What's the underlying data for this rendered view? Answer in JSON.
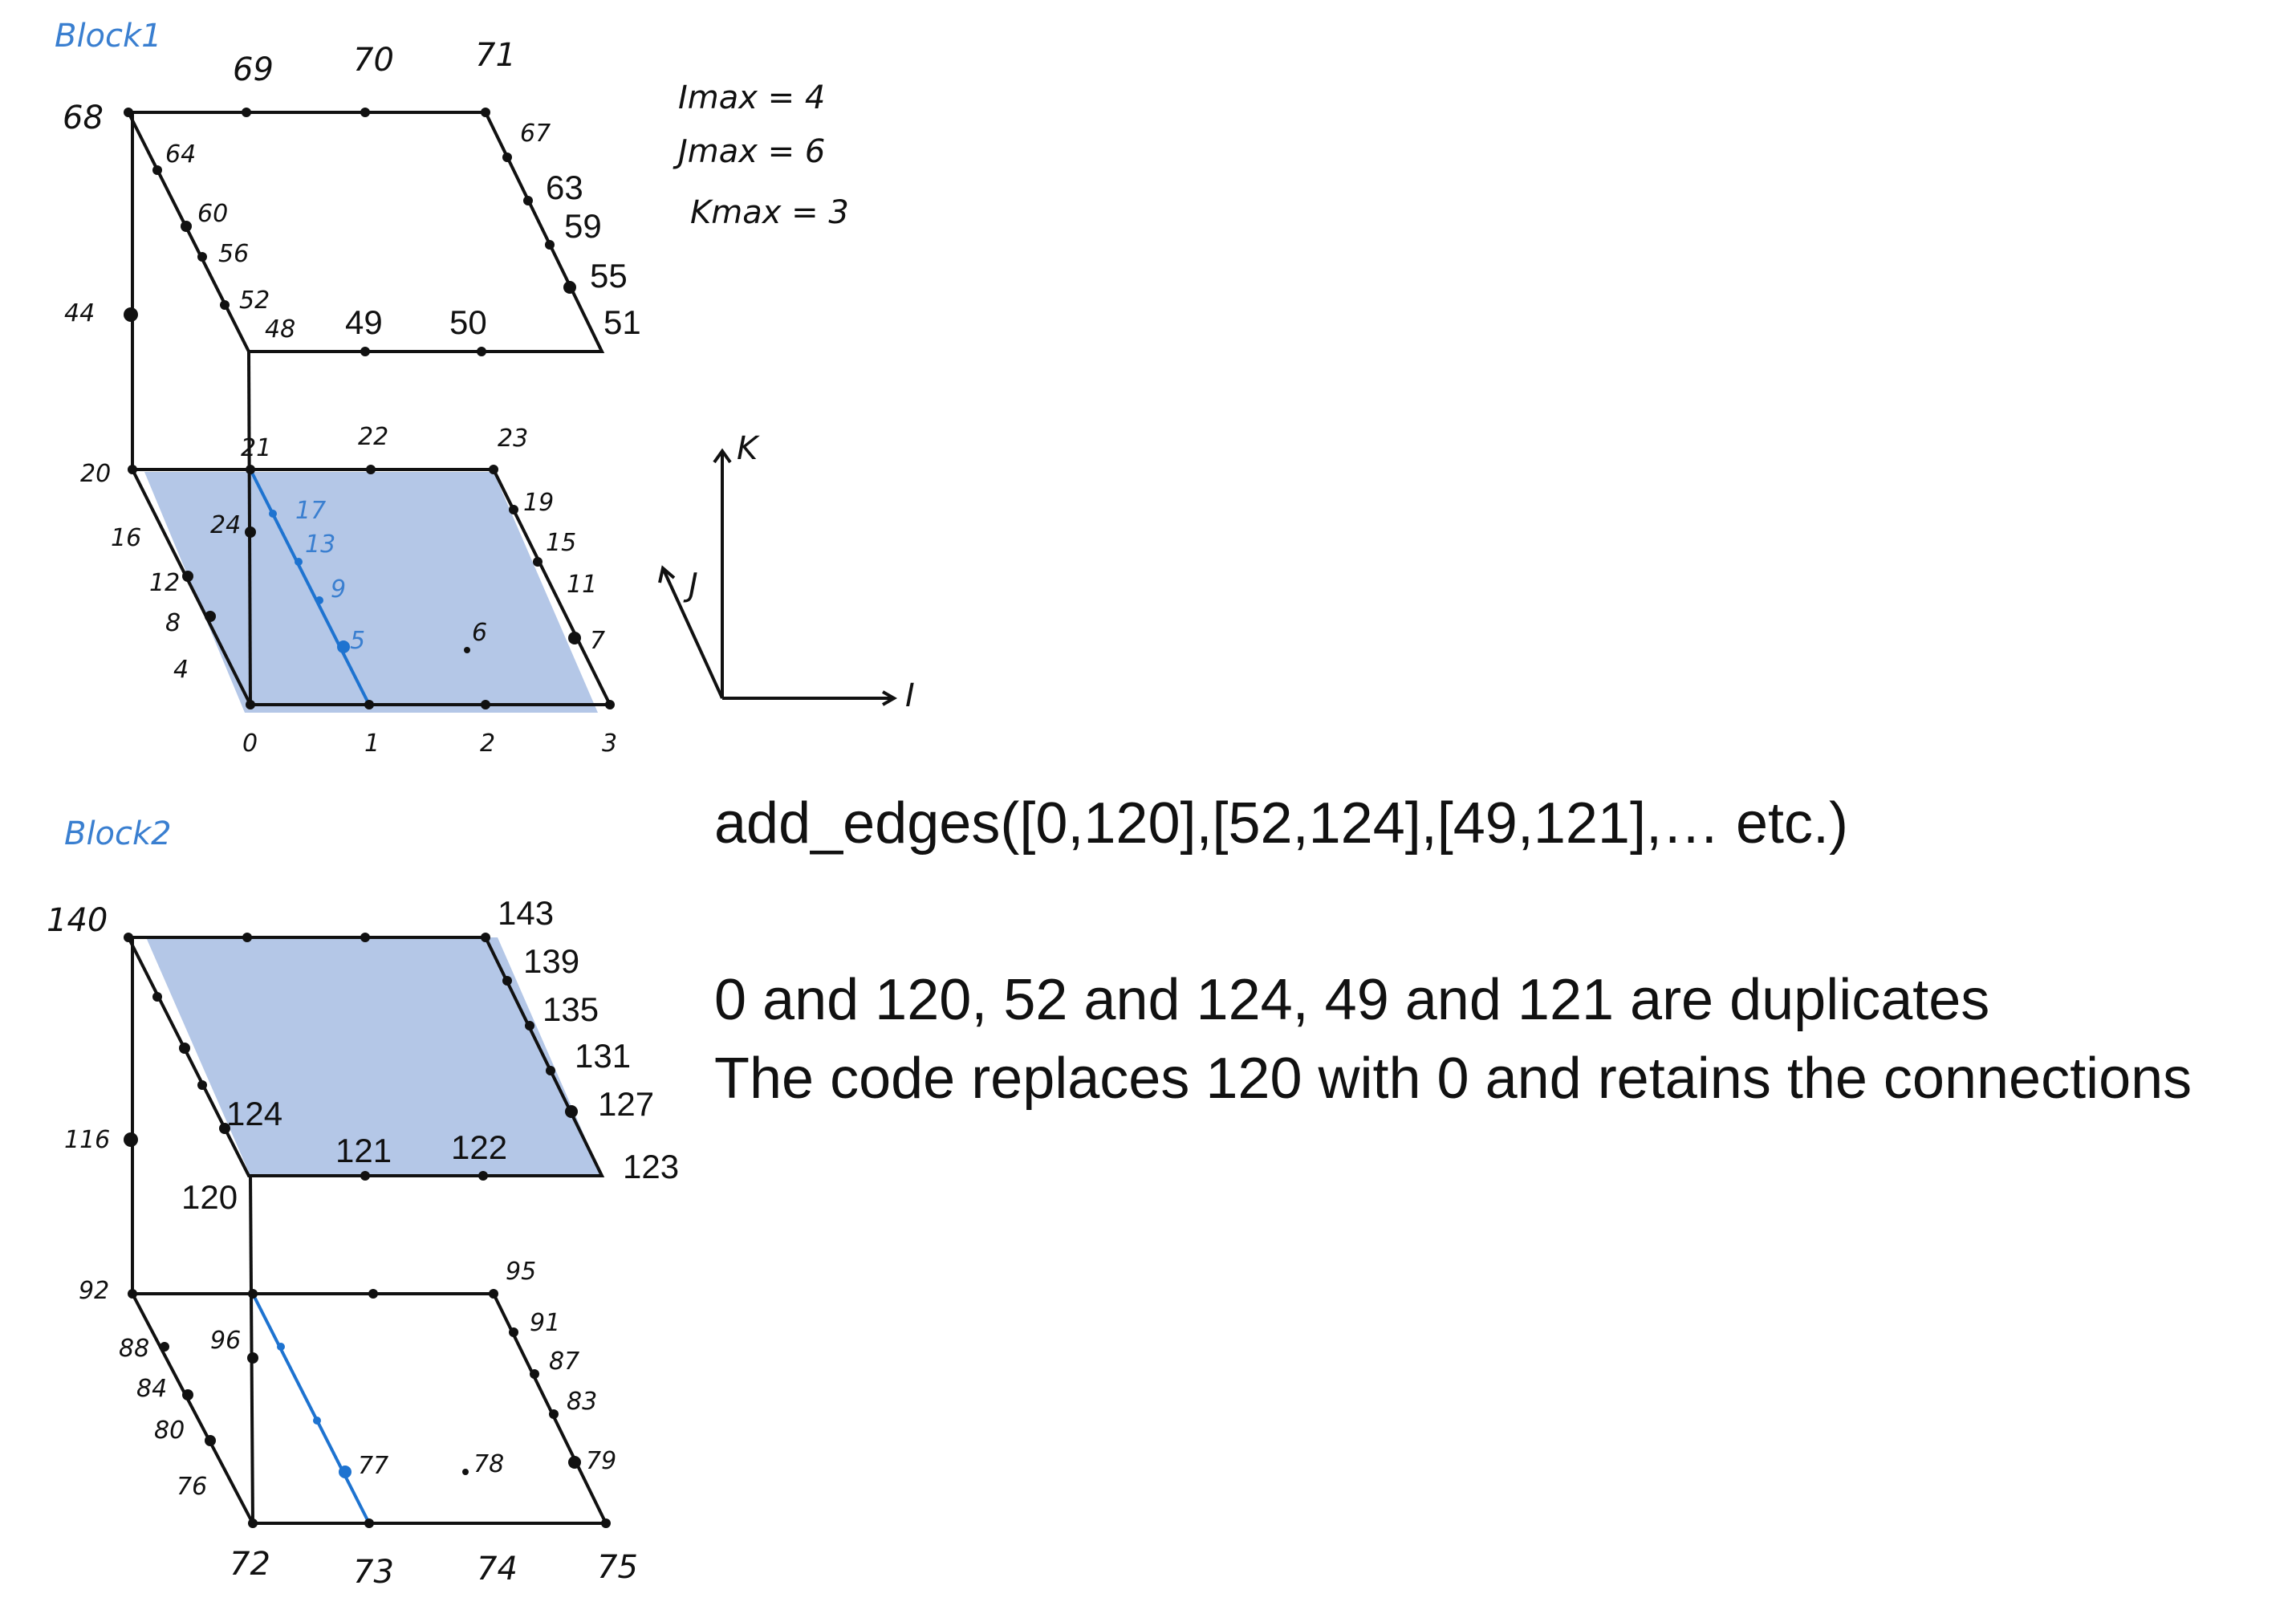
{
  "block1": {
    "title": "Block1",
    "top_face": [
      "68",
      "69",
      "70",
      "71",
      "64",
      "67",
      "60",
      "63",
      "56",
      "59",
      "52",
      "55",
      "48",
      "49",
      "50",
      "51"
    ],
    "mid": [
      "44"
    ],
    "bottom_face": [
      "20",
      "21",
      "22",
      "23",
      "16",
      "19",
      "12",
      "15",
      "8",
      "11",
      "4",
      "7",
      "0",
      "1",
      "2",
      "3"
    ],
    "interior": [
      "24",
      "17",
      "13",
      "9",
      "5",
      "6"
    ]
  },
  "block2": {
    "title": "Block2",
    "top_face": [
      "140",
      "143",
      "139",
      "135",
      "131",
      "127",
      "124",
      "121",
      "122",
      "123",
      "120"
    ],
    "mid": [
      "116"
    ],
    "bottom_face": [
      "92",
      "95",
      "88",
      "91",
      "84",
      "87",
      "80",
      "83",
      "76",
      "79",
      "72",
      "73",
      "74",
      "75"
    ],
    "interior": [
      "96",
      "77",
      "78"
    ]
  },
  "dims": {
    "imax": "Imax = 4",
    "jmax": "Jmax = 6",
    "kmax": "Kmax = 3"
  },
  "axes": {
    "k": "K",
    "j": "J",
    "i": "I"
  },
  "notes": {
    "code": "add_edges([0,120],[52,124],[49,121],… etc.)",
    "duplicates": "0 and 120, 52 and 124, 49 and 121 are duplicates",
    "replace": "The code replaces 120 with 0 and retains the connections"
  },
  "colors": {
    "face_fill": "#b4c7e7",
    "handwritten_blue": "#3a7fd0",
    "edge_blue": "#1e73d0"
  }
}
